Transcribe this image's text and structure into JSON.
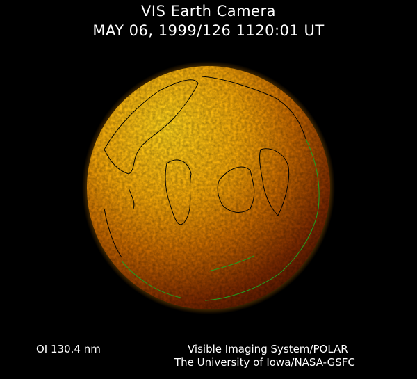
{
  "header": {
    "title": "VIS Earth Camera",
    "subtitle": "MAY 06, 1999/126 1120:01 UT"
  },
  "footer": {
    "wavelength": "OI  130.4 nm",
    "instrument": "Visible Imaging System/POLAR",
    "institution": "The University of Iowa/NASA-GSFC"
  },
  "colors": {
    "background": "#000000",
    "glow_bright": "#ffd21a",
    "glow_mid": "#e08a00",
    "glow_dark": "#5a1800",
    "coastline_day": "#000000",
    "coastline_limb": "#1fa01f"
  }
}
